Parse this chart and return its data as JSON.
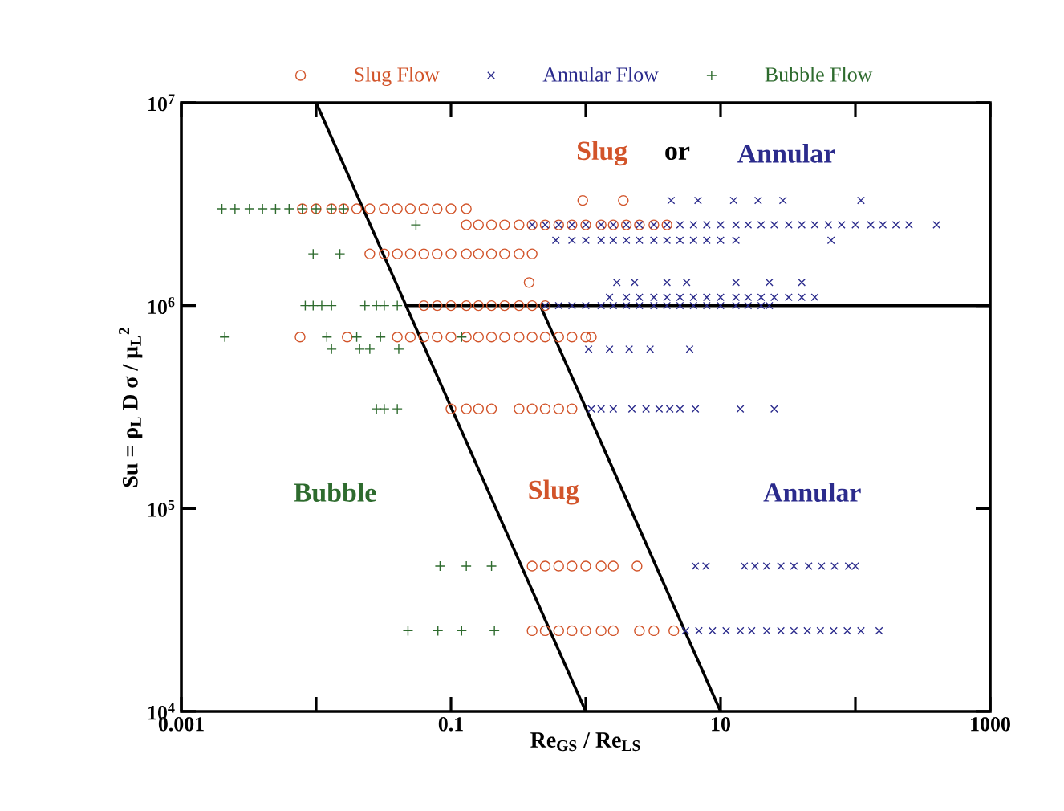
{
  "chart_data": {
    "type": "scatter",
    "xlabel": "Re$_{GS}$ / Re$_{LS}$",
    "ylabel": "Su = ρ$_{L}$ D σ / μ$_{L}$$^{2}$",
    "log": "xy",
    "legend": "top",
    "xlim": [
      0.001,
      1000
    ],
    "ylim": [
      10000,
      10000000
    ],
    "xticks": [
      0.001,
      {
        "value": 0.01,
        "label": null
      },
      0.1,
      {
        "value": 1,
        "label": null
      },
      10,
      {
        "value": 100,
        "label": null
      },
      1000
    ],
    "yticks": [
      {
        "value": 10000,
        "label": "10$^{4}$"
      },
      {
        "value": 100000,
        "label": "10$^{5}$"
      },
      {
        "value": 1000000,
        "label": "10$^{6}$"
      },
      {
        "value": 10000000,
        "label": "10$^{7}$"
      }
    ],
    "annotations": [
      "Slug",
      "or",
      "Annular",
      "Bubble",
      "Slug",
      "Annular"
    ],
    "series": [
      {
        "name": "Slug Flow",
        "color": "#d2542a",
        "marker": "circle",
        "x": [
          0.95,
          1.9,
          0.0079,
          0.01,
          0.013,
          0.016,
          0.02,
          0.025,
          0.032,
          0.04,
          0.05,
          0.063,
          0.079,
          0.1,
          0.13,
          0.13,
          0.16,
          0.2,
          0.25,
          0.32,
          0.4,
          0.5,
          0.63,
          0.79,
          1,
          1.3,
          1.6,
          2,
          2.5,
          3.2,
          4,
          0.025,
          0.032,
          0.04,
          0.05,
          0.063,
          0.079,
          0.1,
          0.13,
          0.16,
          0.2,
          0.25,
          0.32,
          0.4,
          0.38,
          0.063,
          0.079,
          0.1,
          0.13,
          0.16,
          0.2,
          0.25,
          0.32,
          0.4,
          0.5,
          0.0076,
          0.017,
          0.04,
          0.05,
          0.063,
          0.079,
          0.1,
          0.13,
          0.16,
          0.2,
          0.25,
          0.32,
          0.4,
          0.5,
          0.63,
          0.79,
          1,
          1.1,
          0.1,
          0.13,
          0.16,
          0.2,
          0.32,
          0.4,
          0.5,
          0.63,
          0.79,
          0.4,
          0.5,
          0.63,
          0.79,
          1,
          1.3,
          1.6,
          2.4,
          0.4,
          0.5,
          0.63,
          0.79,
          1,
          1.3,
          1.6,
          2.5,
          3.2,
          4.5
        ],
        "values": [
          3300000.0,
          3300000.0,
          3000000.0,
          3000000.0,
          3000000.0,
          3000000.0,
          3000000.0,
          3000000.0,
          3000000.0,
          3000000.0,
          3000000.0,
          3000000.0,
          3000000.0,
          3000000.0,
          3000000.0,
          2500000.0,
          2500000.0,
          2500000.0,
          2500000.0,
          2500000.0,
          2500000.0,
          2500000.0,
          2500000.0,
          2500000.0,
          2500000.0,
          2500000.0,
          2500000.0,
          2500000.0,
          2500000.0,
          2500000.0,
          2500000.0,
          1800000.0,
          1800000.0,
          1800000.0,
          1800000.0,
          1800000.0,
          1800000.0,
          1800000.0,
          1800000.0,
          1800000.0,
          1800000.0,
          1800000.0,
          1800000.0,
          1800000.0,
          1300000.0,
          1000000.0,
          1000000.0,
          1000000.0,
          1000000.0,
          1000000.0,
          1000000.0,
          1000000.0,
          1000000.0,
          1000000.0,
          1000000.0,
          700000.0,
          700000.0,
          700000.0,
          700000.0,
          700000.0,
          700000.0,
          700000.0,
          700000.0,
          700000.0,
          700000.0,
          700000.0,
          700000.0,
          700000.0,
          700000.0,
          700000.0,
          700000.0,
          700000.0,
          700000.0,
          310000.0,
          310000.0,
          310000.0,
          310000.0,
          310000.0,
          310000.0,
          310000.0,
          310000.0,
          310000.0,
          52000.0,
          52000.0,
          52000.0,
          52000.0,
          52000.0,
          52000.0,
          52000.0,
          52000.0,
          25000.0,
          25000.0,
          25000.0,
          25000.0,
          25000.0,
          25000.0,
          25000.0,
          25000.0,
          25000.0,
          25000.0
        ]
      },
      {
        "name": "Annular Flow",
        "color": "#2b2b8c",
        "marker": "cross",
        "x": [
          4.3,
          6.8,
          12.5,
          19,
          29,
          110,
          0.4,
          0.5,
          0.63,
          0.79,
          1,
          1.3,
          1.6,
          2,
          2.5,
          3.2,
          4,
          5,
          6.3,
          7.9,
          10,
          13,
          16,
          20,
          25,
          32,
          40,
          50,
          63,
          79,
          100,
          130,
          160,
          200,
          250,
          400,
          0.6,
          0.79,
          1,
          1.3,
          1.6,
          2,
          2.5,
          3.2,
          4,
          5,
          6.3,
          7.9,
          10,
          13,
          66,
          1.7,
          2.3,
          4,
          5.6,
          13,
          23,
          40,
          1.5,
          2,
          2.5,
          3.2,
          4,
          5,
          6.3,
          7.9,
          10,
          13,
          16,
          20,
          25,
          32,
          40,
          50,
          0.5,
          0.63,
          0.79,
          1,
          1.3,
          1.6,
          2,
          2.5,
          3.2,
          4,
          5,
          6.3,
          7.9,
          10,
          13,
          16,
          20,
          23,
          1.05,
          1.5,
          2.1,
          3,
          5.9,
          1.1,
          1.3,
          1.6,
          2.2,
          2.8,
          3.5,
          4.2,
          5,
          6.5,
          14,
          25,
          6.5,
          7.8,
          15,
          18,
          22,
          28,
          35,
          45,
          56,
          70,
          89,
          100,
          5.5,
          6.9,
          8.7,
          11,
          14,
          17,
          22,
          28,
          35,
          44,
          55,
          69,
          87,
          110,
          150
        ],
        "values": [
          3300000.0,
          3300000.0,
          3300000.0,
          3300000.0,
          3300000.0,
          3300000.0,
          2500000.0,
          2500000.0,
          2500000.0,
          2500000.0,
          2500000.0,
          2500000.0,
          2500000.0,
          2500000.0,
          2500000.0,
          2500000.0,
          2500000.0,
          2500000.0,
          2500000.0,
          2500000.0,
          2500000.0,
          2500000.0,
          2500000.0,
          2500000.0,
          2500000.0,
          2500000.0,
          2500000.0,
          2500000.0,
          2500000.0,
          2500000.0,
          2500000.0,
          2500000.0,
          2500000.0,
          2500000.0,
          2500000.0,
          2500000.0,
          2100000.0,
          2100000.0,
          2100000.0,
          2100000.0,
          2100000.0,
          2100000.0,
          2100000.0,
          2100000.0,
          2100000.0,
          2100000.0,
          2100000.0,
          2100000.0,
          2100000.0,
          2100000.0,
          2100000.0,
          1300000.0,
          1300000.0,
          1300000.0,
          1300000.0,
          1300000.0,
          1300000.0,
          1300000.0,
          1100000.0,
          1100000.0,
          1100000.0,
          1100000.0,
          1100000.0,
          1100000.0,
          1100000.0,
          1100000.0,
          1100000.0,
          1100000.0,
          1100000.0,
          1100000.0,
          1100000.0,
          1100000.0,
          1100000.0,
          1100000.0,
          1000000.0,
          1000000.0,
          1000000.0,
          1000000.0,
          1000000.0,
          1000000.0,
          1000000.0,
          1000000.0,
          1000000.0,
          1000000.0,
          1000000.0,
          1000000.0,
          1000000.0,
          1000000.0,
          1000000.0,
          1000000.0,
          1000000.0,
          1000000.0,
          610000.0,
          610000.0,
          610000.0,
          610000.0,
          610000.0,
          310000.0,
          310000.0,
          310000.0,
          310000.0,
          310000.0,
          310000.0,
          310000.0,
          310000.0,
          310000.0,
          310000.0,
          310000.0,
          52000.0,
          52000.0,
          52000.0,
          52000.0,
          52000.0,
          52000.0,
          52000.0,
          52000.0,
          52000.0,
          52000.0,
          52000.0,
          52000.0,
          25000.0,
          25000.0,
          25000.0,
          25000.0,
          25000.0,
          25000.0,
          25000.0,
          25000.0,
          25000.0,
          25000.0,
          25000.0,
          25000.0,
          25000.0,
          25000.0,
          25000.0
        ]
      },
      {
        "name": "Bubble Flow",
        "color": "#2e6b2e",
        "marker": "plus",
        "x": [
          0.002,
          0.0025,
          0.0032,
          0.004,
          0.005,
          0.0063,
          0.0079,
          0.01,
          0.013,
          0.016,
          0.055,
          0.0095,
          0.015,
          0.0083,
          0.0095,
          0.011,
          0.013,
          0.023,
          0.028,
          0.032,
          0.04,
          0.0021,
          0.012,
          0.02,
          0.03,
          0.12,
          0.013,
          0.021,
          0.025,
          0.041,
          0.028,
          0.032,
          0.04,
          0.083,
          0.13,
          0.2,
          0.048,
          0.08,
          0.12,
          0.21
        ],
        "values": [
          3000000.0,
          3000000.0,
          3000000.0,
          3000000.0,
          3000000.0,
          3000000.0,
          3000000.0,
          3000000.0,
          3000000.0,
          3000000.0,
          2500000.0,
          1800000.0,
          1800000.0,
          1000000.0,
          1000000.0,
          1000000.0,
          1000000.0,
          1000000.0,
          1000000.0,
          1000000.0,
          1000000.0,
          700000.0,
          700000.0,
          700000.0,
          700000.0,
          700000.0,
          610000.0,
          610000.0,
          610000.0,
          610000.0,
          310000.0,
          310000.0,
          310000.0,
          52000.0,
          52000.0,
          52000.0,
          25000.0,
          25000.0,
          25000.0,
          25000.0
        ]
      },
      {
        "type": "line",
        "color": "#000000",
        "marker": "none",
        "line_style": "solid",
        "x": [
          0.01,
          1
        ],
        "values": [
          10000000.0,
          10000.0
        ]
      },
      {
        "type": "line",
        "color": "#000000",
        "marker": "none",
        "line_style": "solid",
        "x": [
          0.46,
          10
        ],
        "values": [
          1000000.0,
          10000.0
        ]
      },
      {
        "type": "line",
        "color": "#000000",
        "marker": "none",
        "line_style": "solid",
        "x": [
          0.046,
          1000
        ],
        "values": [
          1000000.0,
          1000000.0
        ]
      }
    ]
  }
}
